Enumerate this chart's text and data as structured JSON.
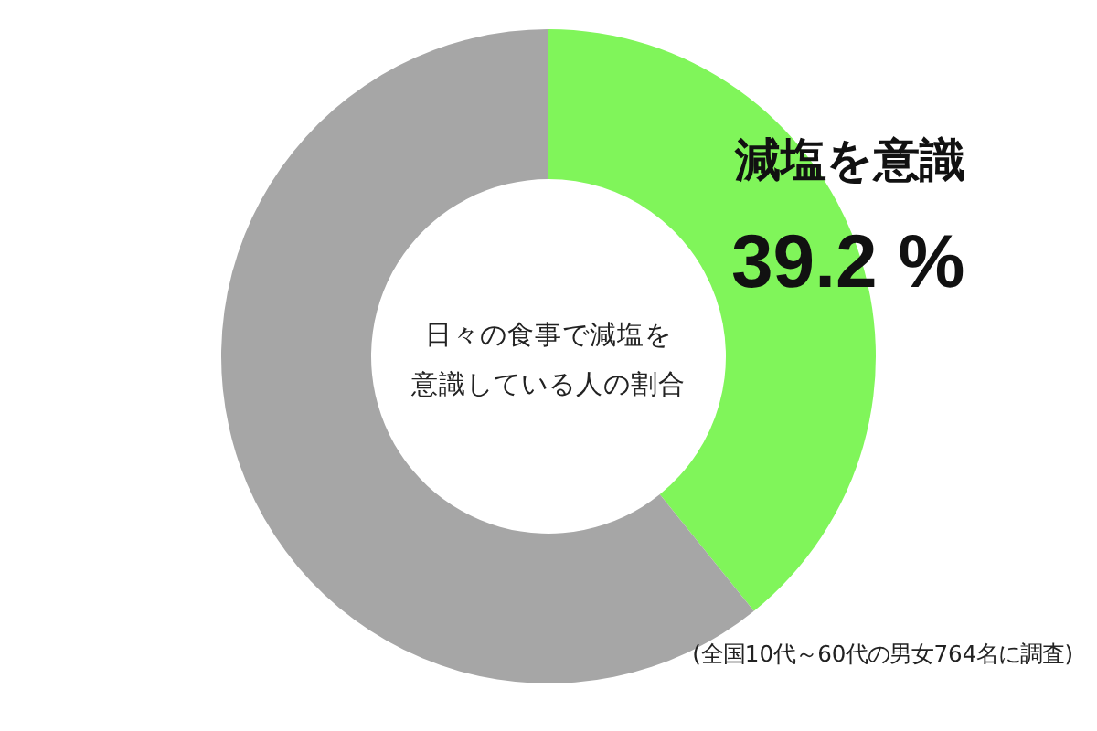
{
  "chart_data": {
    "type": "donut",
    "title": "日々の食事で減塩を意識している人の割合",
    "categories": [
      "減塩を意識",
      null
    ],
    "values": [
      39.2,
      60.8
    ],
    "colors": [
      "#80f55a",
      "#a6a6a6"
    ],
    "value_labels": [
      "39.2 %",
      null
    ],
    "annotations": [
      "(全国10代～60代の男女764名に調査)"
    ]
  }
}
